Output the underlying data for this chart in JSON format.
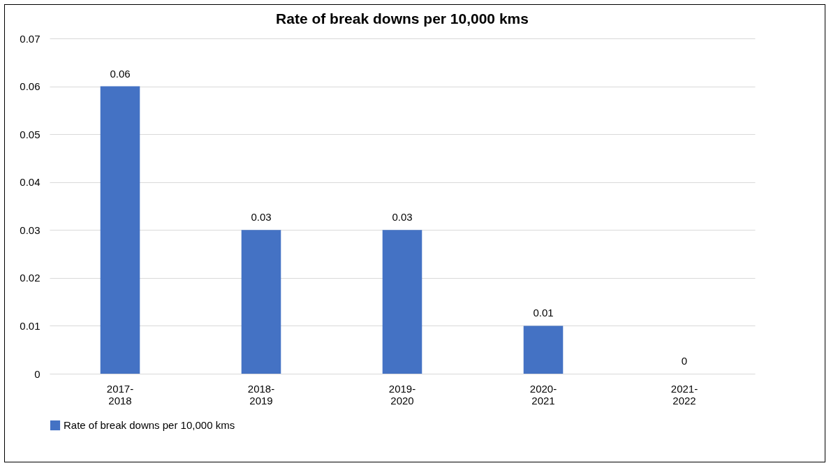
{
  "chart_data": {
    "type": "bar",
    "title": "Rate of break downs per 10,000 kms",
    "categories": [
      "2017-2018",
      "2018-2019",
      "2019-2020",
      "2020-2021",
      "2021-2022"
    ],
    "series": [
      {
        "name": "Rate of break downs per 10,000 kms",
        "color": "#4472c4",
        "values": [
          0.06,
          0.03,
          0.03,
          0.01,
          0
        ]
      }
    ],
    "ylim": [
      0,
      0.07
    ],
    "yticks": [
      0,
      0.01,
      0.02,
      0.03,
      0.04,
      0.05,
      0.06,
      0.07
    ],
    "grid": "y",
    "data_labels": true,
    "legend": "bottom"
  }
}
